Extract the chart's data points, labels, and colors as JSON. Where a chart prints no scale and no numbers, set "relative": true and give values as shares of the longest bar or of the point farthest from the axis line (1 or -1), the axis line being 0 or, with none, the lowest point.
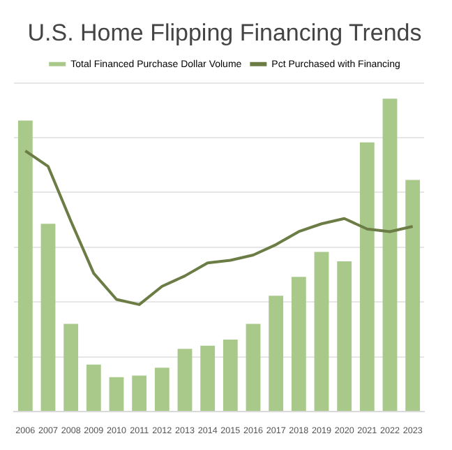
{
  "chart_data": {
    "type": "bar",
    "title": "U.S. Home Flipping Financing Trends",
    "relative": true,
    "grid": "y",
    "legend": "top",
    "categories": [
      "2006",
      "2007",
      "2008",
      "2009",
      "2010",
      "2011",
      "2012",
      "2013",
      "2014",
      "2015",
      "2016",
      "2017",
      "2018",
      "2019",
      "2020",
      "2021",
      "2022",
      "2023"
    ],
    "series": [
      {
        "name": "Total Financed Purchase Dollar Volume",
        "color": "#a9c98a",
        "values": [
          0.93,
          0.6,
          0.28,
          0.15,
          0.11,
          0.115,
          0.14,
          0.2,
          0.21,
          0.23,
          0.28,
          0.37,
          0.43,
          0.51,
          0.48,
          0.86,
          1,
          0.74
        ]
      },
      {
        "name": "Pct Purchased with Financing",
        "type": "line",
        "axis": "y2",
        "color": "#6b7d45",
        "values": [
          1,
          0.94,
          0.73,
          0.53,
          0.43,
          0.41,
          0.48,
          0.52,
          0.57,
          0.58,
          0.6,
          0.64,
          0.69,
          0.72,
          0.74,
          0.7,
          0.69,
          0.71
        ]
      }
    ]
  }
}
